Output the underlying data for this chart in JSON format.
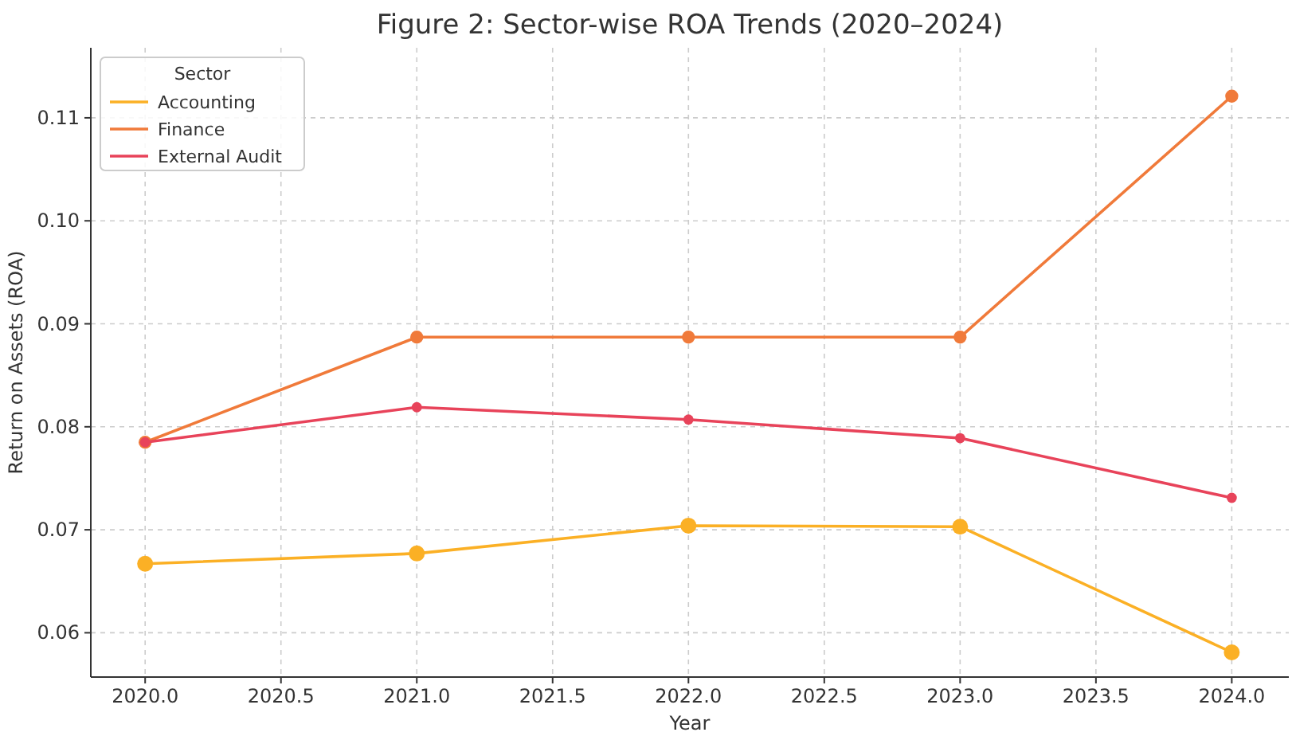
{
  "chart_data": {
    "type": "line",
    "title": "Figure 2: Sector-wise ROA Trends (2020–2024)",
    "xlabel": "Year",
    "ylabel": "Return on Assets (ROA)",
    "legend_title": "Sector",
    "legend": "top left",
    "grid": true,
    "marker": "circle",
    "line_style": "solid",
    "x": [
      2020,
      2021,
      2022,
      2023,
      2024
    ],
    "series": [
      {
        "name": "Accounting",
        "color": "#fbb025",
        "values": [
          0.0667,
          0.0677,
          0.0704,
          0.0703,
          0.0581
        ]
      },
      {
        "name": "Finance",
        "color": "#f07a3a",
        "values": [
          0.0785,
          0.0887,
          0.0887,
          0.0887,
          0.1121
        ]
      },
      {
        "name": "External Audit",
        "color": "#e8435a",
        "values": [
          0.0785,
          0.0819,
          0.0807,
          0.0789,
          0.0731
        ]
      }
    ],
    "xlim": [
      2019.8,
      2024.21
    ],
    "ylim": [
      0.0557,
      0.1168
    ],
    "xticks": [
      {
        "value": 2020,
        "label": "2020.0"
      },
      {
        "value": 2020.5,
        "label": "2020.5"
      },
      {
        "value": 2021,
        "label": "2021.0"
      },
      {
        "value": 2021.5,
        "label": "2021.5"
      },
      {
        "value": 2022,
        "label": "2022.0"
      },
      {
        "value": 2022.5,
        "label": "2022.5"
      },
      {
        "value": 2023,
        "label": "2023.0"
      },
      {
        "value": 2023.5,
        "label": "2023.5"
      },
      {
        "value": 2024,
        "label": "2024.0"
      }
    ],
    "yticks": [
      0.06,
      0.07,
      0.08,
      0.09,
      {
        "value": 0.1,
        "label": "0.10"
      },
      0.11
    ]
  }
}
